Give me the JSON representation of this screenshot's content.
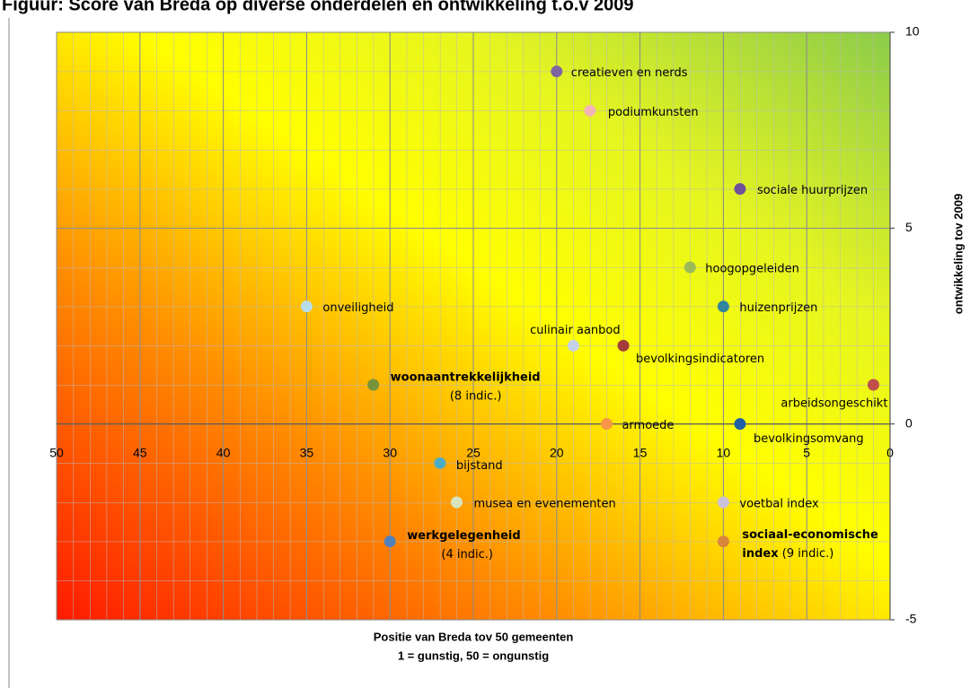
{
  "chart_data": {
    "type": "scatter",
    "title": "Figuur: Score van Breda op diverse onderdelen en ontwikkeling t.o.v 2009",
    "xlabel": [
      "Positie van  Breda tov 50 gemeenten",
      "1 = gunstig,  50 = ongunstig"
    ],
    "ylabel": "ontwikkeling tov 2009",
    "xlim": [
      50,
      0
    ],
    "xticks": [
      50,
      45,
      40,
      35,
      30,
      25,
      20,
      15,
      10,
      5,
      0
    ],
    "ylim": [
      -5,
      10
    ],
    "yticks": [
      10,
      5,
      0,
      -5
    ],
    "grid": true,
    "points": [
      {
        "name": "creatieven en nerds",
        "x": 20,
        "y": 9,
        "color": "#8064a2"
      },
      {
        "name": "podiumkunsten",
        "x": 18,
        "y": 8,
        "color": "#f2b4b4"
      },
      {
        "name": "sociale huurprijzen",
        "x": 9,
        "y": 6,
        "color": "#70509a"
      },
      {
        "name": "hoogopgeleiden",
        "x": 12,
        "y": 4,
        "color": "#9bbb59"
      },
      {
        "name": "huizenprijzen",
        "x": 10,
        "y": 3,
        "color": "#31859c"
      },
      {
        "name": "onveiligheid",
        "x": 35,
        "y": 3,
        "color": "#b7dee8"
      },
      {
        "name": "culinair aanbod",
        "x": 19,
        "y": 2,
        "color": "#c6d1ec"
      },
      {
        "name": "bevolkingsindicatoren",
        "x": 16,
        "y": 2,
        "color": "#a33b3b"
      },
      {
        "name": "woonaantrekkelijkheid",
        "note": "(8 indic.)",
        "x": 31,
        "y": 1,
        "color": "#77933c"
      },
      {
        "name": "arbeidsongeschikt",
        "x": 1,
        "y": 1,
        "color": "#c0504d"
      },
      {
        "name": "armoede",
        "x": 17,
        "y": 0,
        "color": "#f79646"
      },
      {
        "name": "bevolkingsomvang",
        "x": 9,
        "y": 0,
        "color": "#1f5fa6"
      },
      {
        "name": "bijstand",
        "x": 27,
        "y": -1,
        "color": "#4bacc6"
      },
      {
        "name": "musea en evenementen",
        "x": 26,
        "y": -2,
        "color": "#d7e4bd"
      },
      {
        "name": "voetbal index",
        "x": 10,
        "y": -2,
        "color": "#ccc1da"
      },
      {
        "name": "werkgelegenheid",
        "note": "(4 indic.)",
        "x": 30,
        "y": -3,
        "color": "#4f81bd"
      },
      {
        "name": "sociaal-economische index",
        "note": "(9 indic.)",
        "x": 10,
        "y": -3,
        "color": "#d9853b"
      }
    ]
  }
}
